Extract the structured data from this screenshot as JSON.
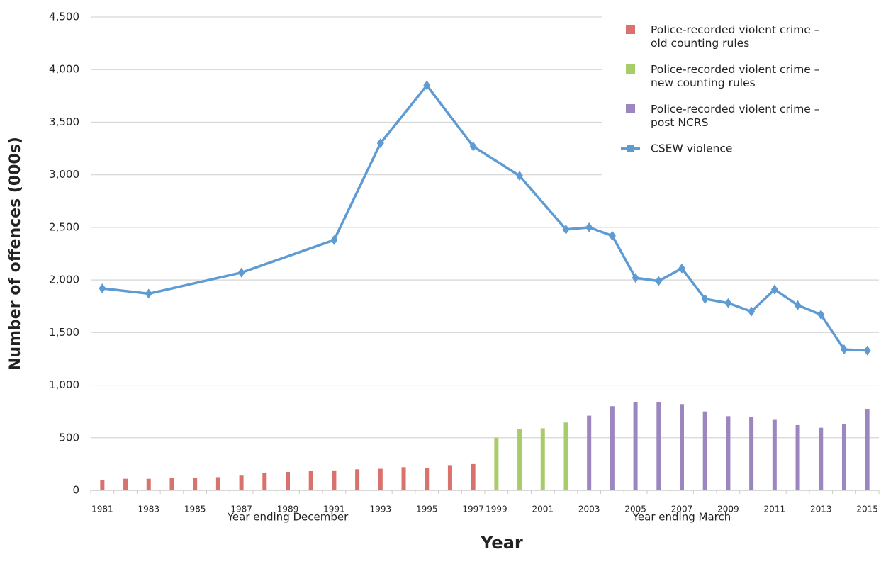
{
  "chart_data": {
    "type": "combo",
    "y_label": "Number of offences (000s)",
    "x_label": "Year",
    "x_group_labels": [
      "Year ending December",
      "Year ending March"
    ],
    "categories": [
      "1981",
      null,
      "1983",
      null,
      "1985",
      null,
      "1987",
      null,
      "1989",
      null,
      "1991",
      null,
      "1993",
      null,
      "1995",
      null,
      "1997",
      "1999",
      null,
      "2001",
      null,
      "2003",
      null,
      "2005",
      null,
      "2007",
      null,
      "2009",
      null,
      "2011",
      null,
      "2013",
      null,
      "2015"
    ],
    "ylim": [
      0,
      4500
    ],
    "yticks": [
      0,
      500,
      {
        "value": 1000,
        "label": "1,000"
      },
      {
        "value": 1500,
        "label": "1,500"
      },
      {
        "value": 2000,
        "label": "2,000"
      },
      {
        "value": 2500,
        "label": "2,500"
      },
      {
        "value": 3000,
        "label": "3,000"
      },
      {
        "value": 3500,
        "label": "3,500"
      },
      {
        "value": 4000,
        "label": "4,000"
      },
      {
        "value": 4500,
        "label": "4,500"
      }
    ],
    "grid": true,
    "legend": "top-right",
    "series": [
      {
        "name": "Police-recorded violent crime – old counting rules",
        "type": "bar",
        "color": "#d9716c",
        "values": [
          100,
          110,
          110,
          115,
          120,
          125,
          140,
          165,
          175,
          185,
          190,
          200,
          205,
          220,
          215,
          240,
          250,
          null,
          null,
          null,
          null,
          null,
          null,
          null,
          null,
          null,
          null,
          null,
          null,
          null,
          null,
          null,
          null,
          null
        ]
      },
      {
        "name": "Police-recorded violent crime – new counting rules",
        "type": "bar",
        "color": "#a9cc6a",
        "values": [
          null,
          null,
          null,
          null,
          null,
          null,
          null,
          null,
          null,
          null,
          null,
          null,
          null,
          null,
          null,
          null,
          null,
          500,
          580,
          590,
          645,
          null,
          null,
          null,
          null,
          null,
          null,
          null,
          null,
          null,
          null,
          null,
          null,
          null
        ]
      },
      {
        "name": "Police-recorded violent crime – post NCRS",
        "type": "bar",
        "color": "#9b86bf",
        "values": [
          null,
          null,
          null,
          null,
          null,
          null,
          null,
          null,
          null,
          null,
          null,
          null,
          null,
          null,
          null,
          null,
          null,
          null,
          null,
          null,
          null,
          710,
          800,
          840,
          840,
          820,
          750,
          705,
          700,
          670,
          620,
          595,
          630,
          775
        ]
      },
      {
        "name": "CSEW violence",
        "type": "line",
        "color": "#5f9bd3",
        "values": [
          1920,
          null,
          1870,
          null,
          null,
          null,
          2070,
          null,
          null,
          null,
          2380,
          null,
          3300,
          null,
          3850,
          null,
          3270,
          null,
          2990,
          null,
          2480,
          2500,
          2420,
          2020,
          1990,
          2110,
          1820,
          1780,
          1700,
          1910,
          1760,
          1670,
          1340,
          1330
        ]
      }
    ]
  }
}
